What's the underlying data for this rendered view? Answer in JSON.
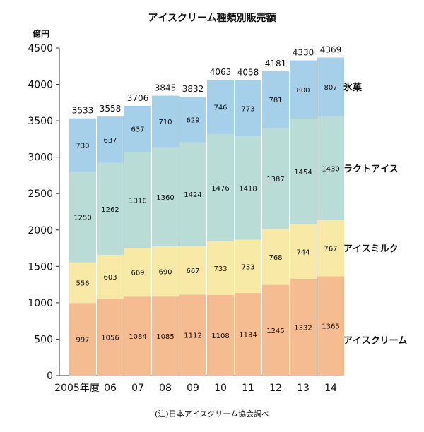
{
  "chart_data": {
    "type": "bar",
    "stacked": true,
    "title": "アイスクリーム種類別販売額",
    "ylabel": "億円",
    "ylim": [
      0,
      4500
    ],
    "yticks": [
      0,
      500,
      1000,
      1500,
      2000,
      2500,
      3000,
      3500,
      4000,
      4500
    ],
    "categories": [
      "2005年度",
      "06",
      "07",
      "08",
      "09",
      "10",
      "11",
      "12",
      "13",
      "14"
    ],
    "series": [
      {
        "name": "アイスクリーム",
        "color": "#f5bc91",
        "values": [
          997,
          1056,
          1084,
          1085,
          1112,
          1108,
          1134,
          1245,
          1332,
          1365
        ]
      },
      {
        "name": "アイスミルク",
        "color": "#f8e9a6",
        "values": [
          556,
          603,
          669,
          690,
          667,
          733,
          733,
          768,
          744,
          767
        ]
      },
      {
        "name": "ラクトアイス",
        "color": "#b9ddd6",
        "values": [
          1250,
          1262,
          1316,
          1360,
          1424,
          1476,
          1418,
          1387,
          1454,
          1430
        ]
      },
      {
        "name": "氷菓",
        "color": "#a6cfe9",
        "values": [
          730,
          637,
          637,
          710,
          629,
          746,
          773,
          781,
          800,
          807
        ]
      }
    ],
    "totals": [
      3533,
      3558,
      3706,
      3845,
      3832,
      4063,
      4058,
      4181,
      4330,
      4369
    ],
    "grid": false,
    "legend": "right, inline labels",
    "source": "(注)日本アイスクリーム協会調べ"
  }
}
